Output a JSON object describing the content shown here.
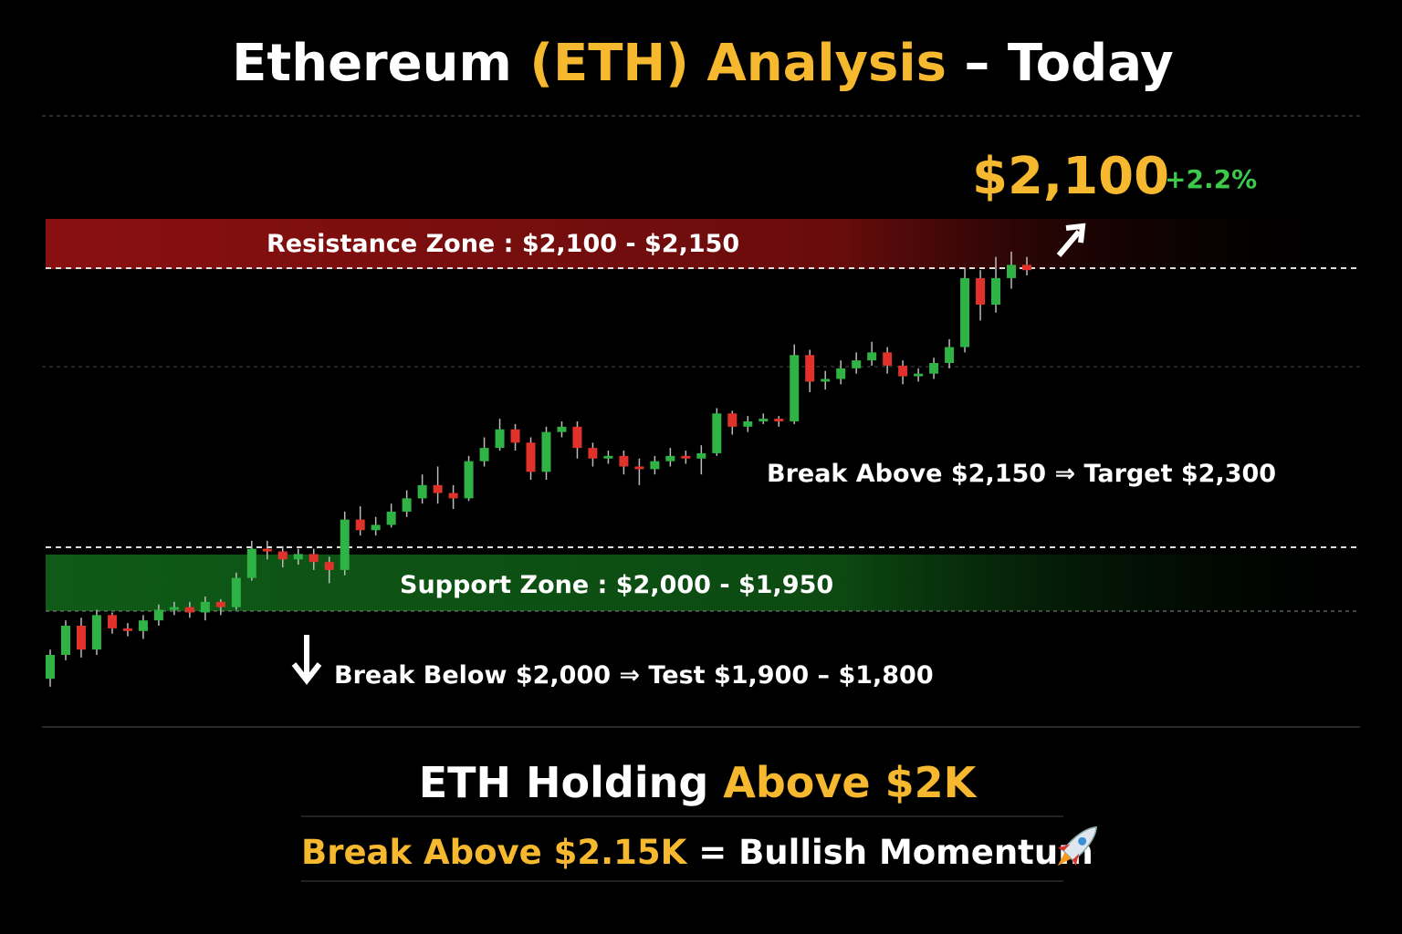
{
  "chart_data": {
    "type": "candlestick",
    "title": {
      "part1": "Ethereum ",
      "part2": "(ETH) Analysis",
      "part3": " – Today"
    },
    "price": "$2,100",
    "change": "+2.2%",
    "resistance_label": "Resistance Zone : $2,100 - $2,150",
    "support_label": "Support Zone : $2,000 - $1,950",
    "annotation_up": "Break Above $2,150 ⇒ Target $2,300",
    "annotation_down": "Break Below $2,000 ⇒ Test $1,900 – $1,800",
    "footer": {
      "line1a": "ETH Holding ",
      "line1b": "Above $2K",
      "line2a": "Break Above $2.15K",
      "line2b": " = Bullish Momentum"
    },
    "up_color": "#2fb344",
    "down_color": "#e0322b",
    "ylim": [
      1945,
      2110
    ],
    "open": [
      1947,
      1956,
      1967,
      1958,
      1971,
      1966,
      1965,
      1969,
      1973,
      1974,
      1972,
      1976,
      1974,
      1985,
      1996,
      1995,
      1992,
      1994,
      1991,
      1988,
      2007,
      2003,
      2005,
      2010,
      2015,
      2020,
      2017,
      2015,
      2029,
      2034,
      2041,
      2036,
      2025,
      2040,
      2042,
      2034,
      2030,
      2031,
      2027,
      2026,
      2029,
      2031,
      2030,
      2032,
      2047,
      2042,
      2044,
      2045,
      2044,
      2069,
      2059,
      2060,
      2064,
      2067,
      2070,
      2065,
      2061,
      2062,
      2066,
      2072,
      2098,
      2088,
      2098,
      2103
    ],
    "high": [
      1958,
      1969,
      1970,
      1973,
      1972,
      1968,
      1971,
      1975,
      1976,
      1976,
      1978,
      1977,
      1987,
      1999,
      1999,
      1997,
      1996,
      1996,
      1993,
      2010,
      2012,
      2008,
      2013,
      2018,
      2024,
      2027,
      2020,
      2031,
      2038,
      2045,
      2043,
      2038,
      2042,
      2044,
      2044,
      2036,
      2033,
      2033,
      2030,
      2031,
      2034,
      2033,
      2035,
      2049,
      2048,
      2046,
      2047,
      2046,
      2073,
      2071,
      2063,
      2067,
      2070,
      2074,
      2072,
      2067,
      2064,
      2068,
      2075,
      2102,
      2101,
      2106,
      2108,
      2106
    ],
    "low": [
      1944,
      1954,
      1955,
      1956,
      1964,
      1963,
      1962,
      1967,
      1971,
      1970,
      1969,
      1971,
      1973,
      1984,
      1992,
      1989,
      1990,
      1988,
      1983,
      1986,
      2001,
      2001,
      2004,
      2008,
      2013,
      2013,
      2011,
      2014,
      2027,
      2033,
      2033,
      2022,
      2022,
      2038,
      2030,
      2027,
      2028,
      2024,
      2020,
      2024,
      2027,
      2028,
      2024,
      2031,
      2039,
      2040,
      2043,
      2042,
      2043,
      2055,
      2056,
      2058,
      2062,
      2065,
      2062,
      2058,
      2059,
      2060,
      2064,
      2070,
      2082,
      2085,
      2094,
      2099
    ],
    "close": [
      1956,
      1967,
      1958,
      1971,
      1966,
      1965,
      1969,
      1973,
      1974,
      1972,
      1976,
      1974,
      1985,
      1996,
      1995,
      1992,
      1994,
      1991,
      1988,
      2007,
      2003,
      2005,
      2010,
      2015,
      2020,
      2017,
      2015,
      2029,
      2034,
      2041,
      2036,
      2025,
      2040,
      2042,
      2034,
      2030,
      2031,
      2027,
      2026,
      2029,
      2031,
      2030,
      2032,
      2047,
      2042,
      2044,
      2045,
      2044,
      2069,
      2059,
      2060,
      2064,
      2067,
      2070,
      2065,
      2061,
      2062,
      2066,
      2072,
      2098,
      2088,
      2098,
      2103,
      2101
    ]
  }
}
